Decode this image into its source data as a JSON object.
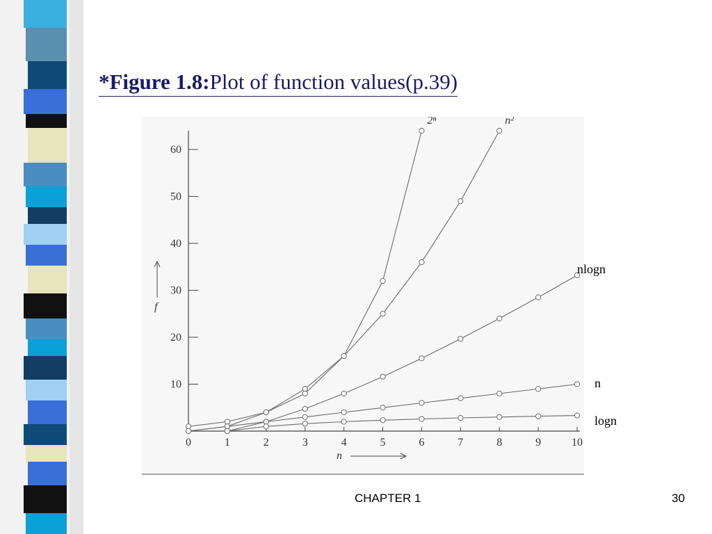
{
  "slide": {
    "title_bold": "*Figure 1.8:",
    "title_rest": "Plot of function values(p.39)",
    "footer_left": "CHAPTER 1",
    "page_number": "30"
  },
  "colors": {
    "title": "#1a1a66",
    "stripe": [
      "#3ab0e0",
      "#5a8fae",
      "#0e4a78",
      "#3a6ed8",
      "#111111",
      "#e8e4bc",
      "#4a8ec0",
      "#0aa0d8",
      "#123e66",
      "#a0d0f4",
      "#3a70d6"
    ],
    "curves": "#6a6a6a"
  },
  "side_labels": {
    "nlogn": "nlogn",
    "n": "n",
    "logn": "logn"
  },
  "chart_data": {
    "type": "line",
    "title": "",
    "xlabel": "n",
    "ylabel": "f",
    "xlim": [
      0,
      10
    ],
    "ylim": [
      0,
      60
    ],
    "x_ticks": [
      0,
      1,
      2,
      3,
      4,
      5,
      6,
      7,
      8,
      9,
      10
    ],
    "y_ticks": [
      10,
      20,
      30,
      40,
      50,
      60
    ],
    "series": [
      {
        "name": "2ⁿ",
        "x": [
          0,
          1,
          2,
          3,
          4,
          5,
          6
        ],
        "y": [
          1,
          2,
          4,
          8,
          16,
          32,
          64
        ]
      },
      {
        "name": "n²",
        "x": [
          0,
          1,
          2,
          3,
          4,
          5,
          6,
          7,
          8
        ],
        "y": [
          0,
          1,
          4,
          9,
          16,
          25,
          36,
          49,
          64
        ]
      },
      {
        "name": "",
        "x": [
          1,
          2,
          3,
          4,
          5,
          6,
          7,
          8,
          9,
          10
        ],
        "y": [
          0,
          2,
          4.75,
          8,
          11.6,
          15.5,
          19.65,
          24,
          28.5,
          33.2
        ]
      },
      {
        "name": "",
        "x": [
          0,
          1,
          2,
          3,
          4,
          5,
          6,
          7,
          8,
          9,
          10
        ],
        "y": [
          0,
          1,
          2,
          3,
          4,
          5,
          6,
          7,
          8,
          9,
          10
        ]
      },
      {
        "name": "",
        "x": [
          1,
          2,
          3,
          4,
          5,
          6,
          7,
          8,
          9,
          10
        ],
        "y": [
          0,
          1,
          1.58,
          2,
          2.32,
          2.58,
          2.81,
          3,
          3.17,
          3.32
        ]
      }
    ]
  }
}
